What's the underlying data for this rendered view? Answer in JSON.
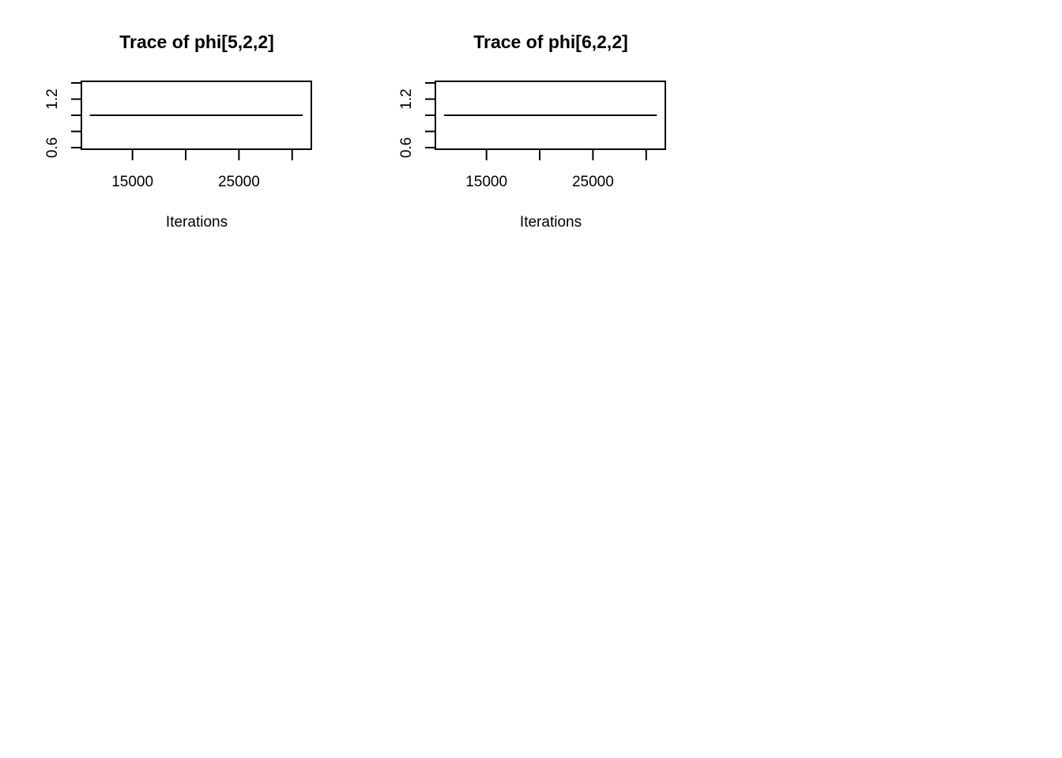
{
  "chart_data": [
    {
      "type": "line",
      "title": "Trace of phi[5,2,2]",
      "xlabel": "Iterations",
      "ylabel": "",
      "x_ticks": [
        15000,
        20000,
        25000,
        30000
      ],
      "x_tick_labels": [
        "15000",
        "",
        "25000",
        ""
      ],
      "xlim": [
        10200,
        31800
      ],
      "y_ticks": [
        0.6,
        0.8,
        1.0,
        1.2,
        1.4
      ],
      "y_tick_labels": [
        "0.6",
        "",
        "",
        "1.2",
        ""
      ],
      "ylim": [
        0.58,
        1.42
      ],
      "series": [
        {
          "x": [
            11000,
            31000
          ],
          "y": [
            1.0,
            1.0
          ]
        }
      ]
    },
    {
      "type": "line",
      "title": "Trace of phi[6,2,2]",
      "xlabel": "Iterations",
      "ylabel": "",
      "x_ticks": [
        15000,
        20000,
        25000,
        30000
      ],
      "x_tick_labels": [
        "15000",
        "",
        "25000",
        ""
      ],
      "xlim": [
        10200,
        31800
      ],
      "y_ticks": [
        0.6,
        0.8,
        1.0,
        1.2,
        1.4
      ],
      "y_tick_labels": [
        "0.6",
        "",
        "",
        "1.2",
        ""
      ],
      "ylim": [
        0.58,
        1.42
      ],
      "series": [
        {
          "x": [
            11000,
            31000
          ],
          "y": [
            1.0,
            1.0
          ]
        }
      ]
    }
  ]
}
